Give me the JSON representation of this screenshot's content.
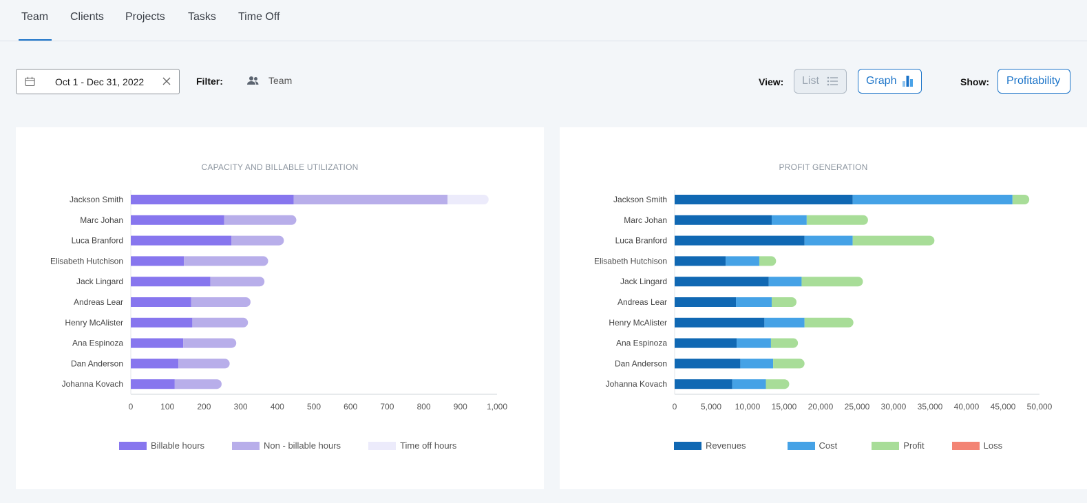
{
  "tabs": [
    {
      "label": "Team",
      "active": true
    },
    {
      "label": "Clients"
    },
    {
      "label": "Projects"
    },
    {
      "label": "Tasks"
    },
    {
      "label": "Time Off"
    }
  ],
  "toolbar": {
    "date_range": "Oct 1 - Dec 31, 2022",
    "filter_label": "Filter:",
    "filter_value": "Team",
    "view_label": "View:",
    "view_list": "List",
    "view_graph": "Graph",
    "show_label": "Show:",
    "show_value": "Profitability"
  },
  "colors": {
    "accent": "#1a73c8",
    "billable": "#8776ee",
    "non_billable": "#b8aeea",
    "time_off": "#ecebfb",
    "revenues": "#1068b3",
    "cost": "#45a2e6",
    "profit": "#a8dd98",
    "loss": "#f38474"
  },
  "chart_data": [
    {
      "type": "bar",
      "orientation": "horizontal",
      "stacked": true,
      "title": "CAPACITY AND BILLABLE UTILIZATION",
      "categories": [
        "Jackson Smith",
        "Marc Johan",
        "Luca Branford",
        "Elisabeth Hutchison",
        "Jack Lingard",
        "Andreas Lear",
        "Henry McAlister",
        "Ana Espinoza",
        "Dan Anderson",
        "Johanna Kovach"
      ],
      "series": [
        {
          "name": "Billable hours",
          "values": [
            445,
            255,
            275,
            145,
            217,
            165,
            168,
            143,
            130,
            120
          ]
        },
        {
          "name": "Non - billable hours",
          "values": [
            420,
            197,
            143,
            230,
            148,
            162,
            152,
            145,
            140,
            128
          ]
        },
        {
          "name": "Time off hours",
          "values": [
            112,
            0,
            0,
            0,
            0,
            0,
            0,
            0,
            0,
            0
          ]
        }
      ],
      "xlim": [
        0,
        1000
      ],
      "xticks": [
        "0",
        "100",
        "200",
        "300",
        "400",
        "500",
        "600",
        "700",
        "800",
        "900",
        "1,000"
      ],
      "legend": "bottom"
    },
    {
      "type": "bar",
      "orientation": "horizontal",
      "stacked": true,
      "title": "PROFIT GENERATION",
      "categories": [
        "Jackson Smith",
        "Marc Johan",
        "Luca Branford",
        "Elisabeth Hutchison",
        "Jack Lingard",
        "Andreas Lear",
        "Henry McAlister",
        "Ana Espinoza",
        "Dan Anderson",
        "Johanna Kovach"
      ],
      "series": [
        {
          "name": "Revenues",
          "values": [
            24400,
            13300,
            17800,
            7000,
            12900,
            8400,
            12300,
            8500,
            9000,
            7900
          ]
        },
        {
          "name": "Cost",
          "values": [
            21900,
            4800,
            6600,
            4600,
            4500,
            4900,
            5500,
            4700,
            4500,
            4600
          ]
        },
        {
          "name": "Profit",
          "values": [
            2300,
            8400,
            11200,
            2300,
            8400,
            3400,
            6700,
            3700,
            4300,
            3200
          ]
        },
        {
          "name": "Loss",
          "values": [
            0,
            0,
            0,
            0,
            0,
            0,
            0,
            0,
            0,
            0
          ]
        }
      ],
      "xlim": [
        0,
        50000
      ],
      "xticks": [
        "0",
        "5,000",
        "10,000",
        "15,000",
        "20,000",
        "25,000",
        "30,000",
        "35,000",
        "40,000",
        "45,000",
        "50,000"
      ],
      "legend": "bottom"
    }
  ]
}
